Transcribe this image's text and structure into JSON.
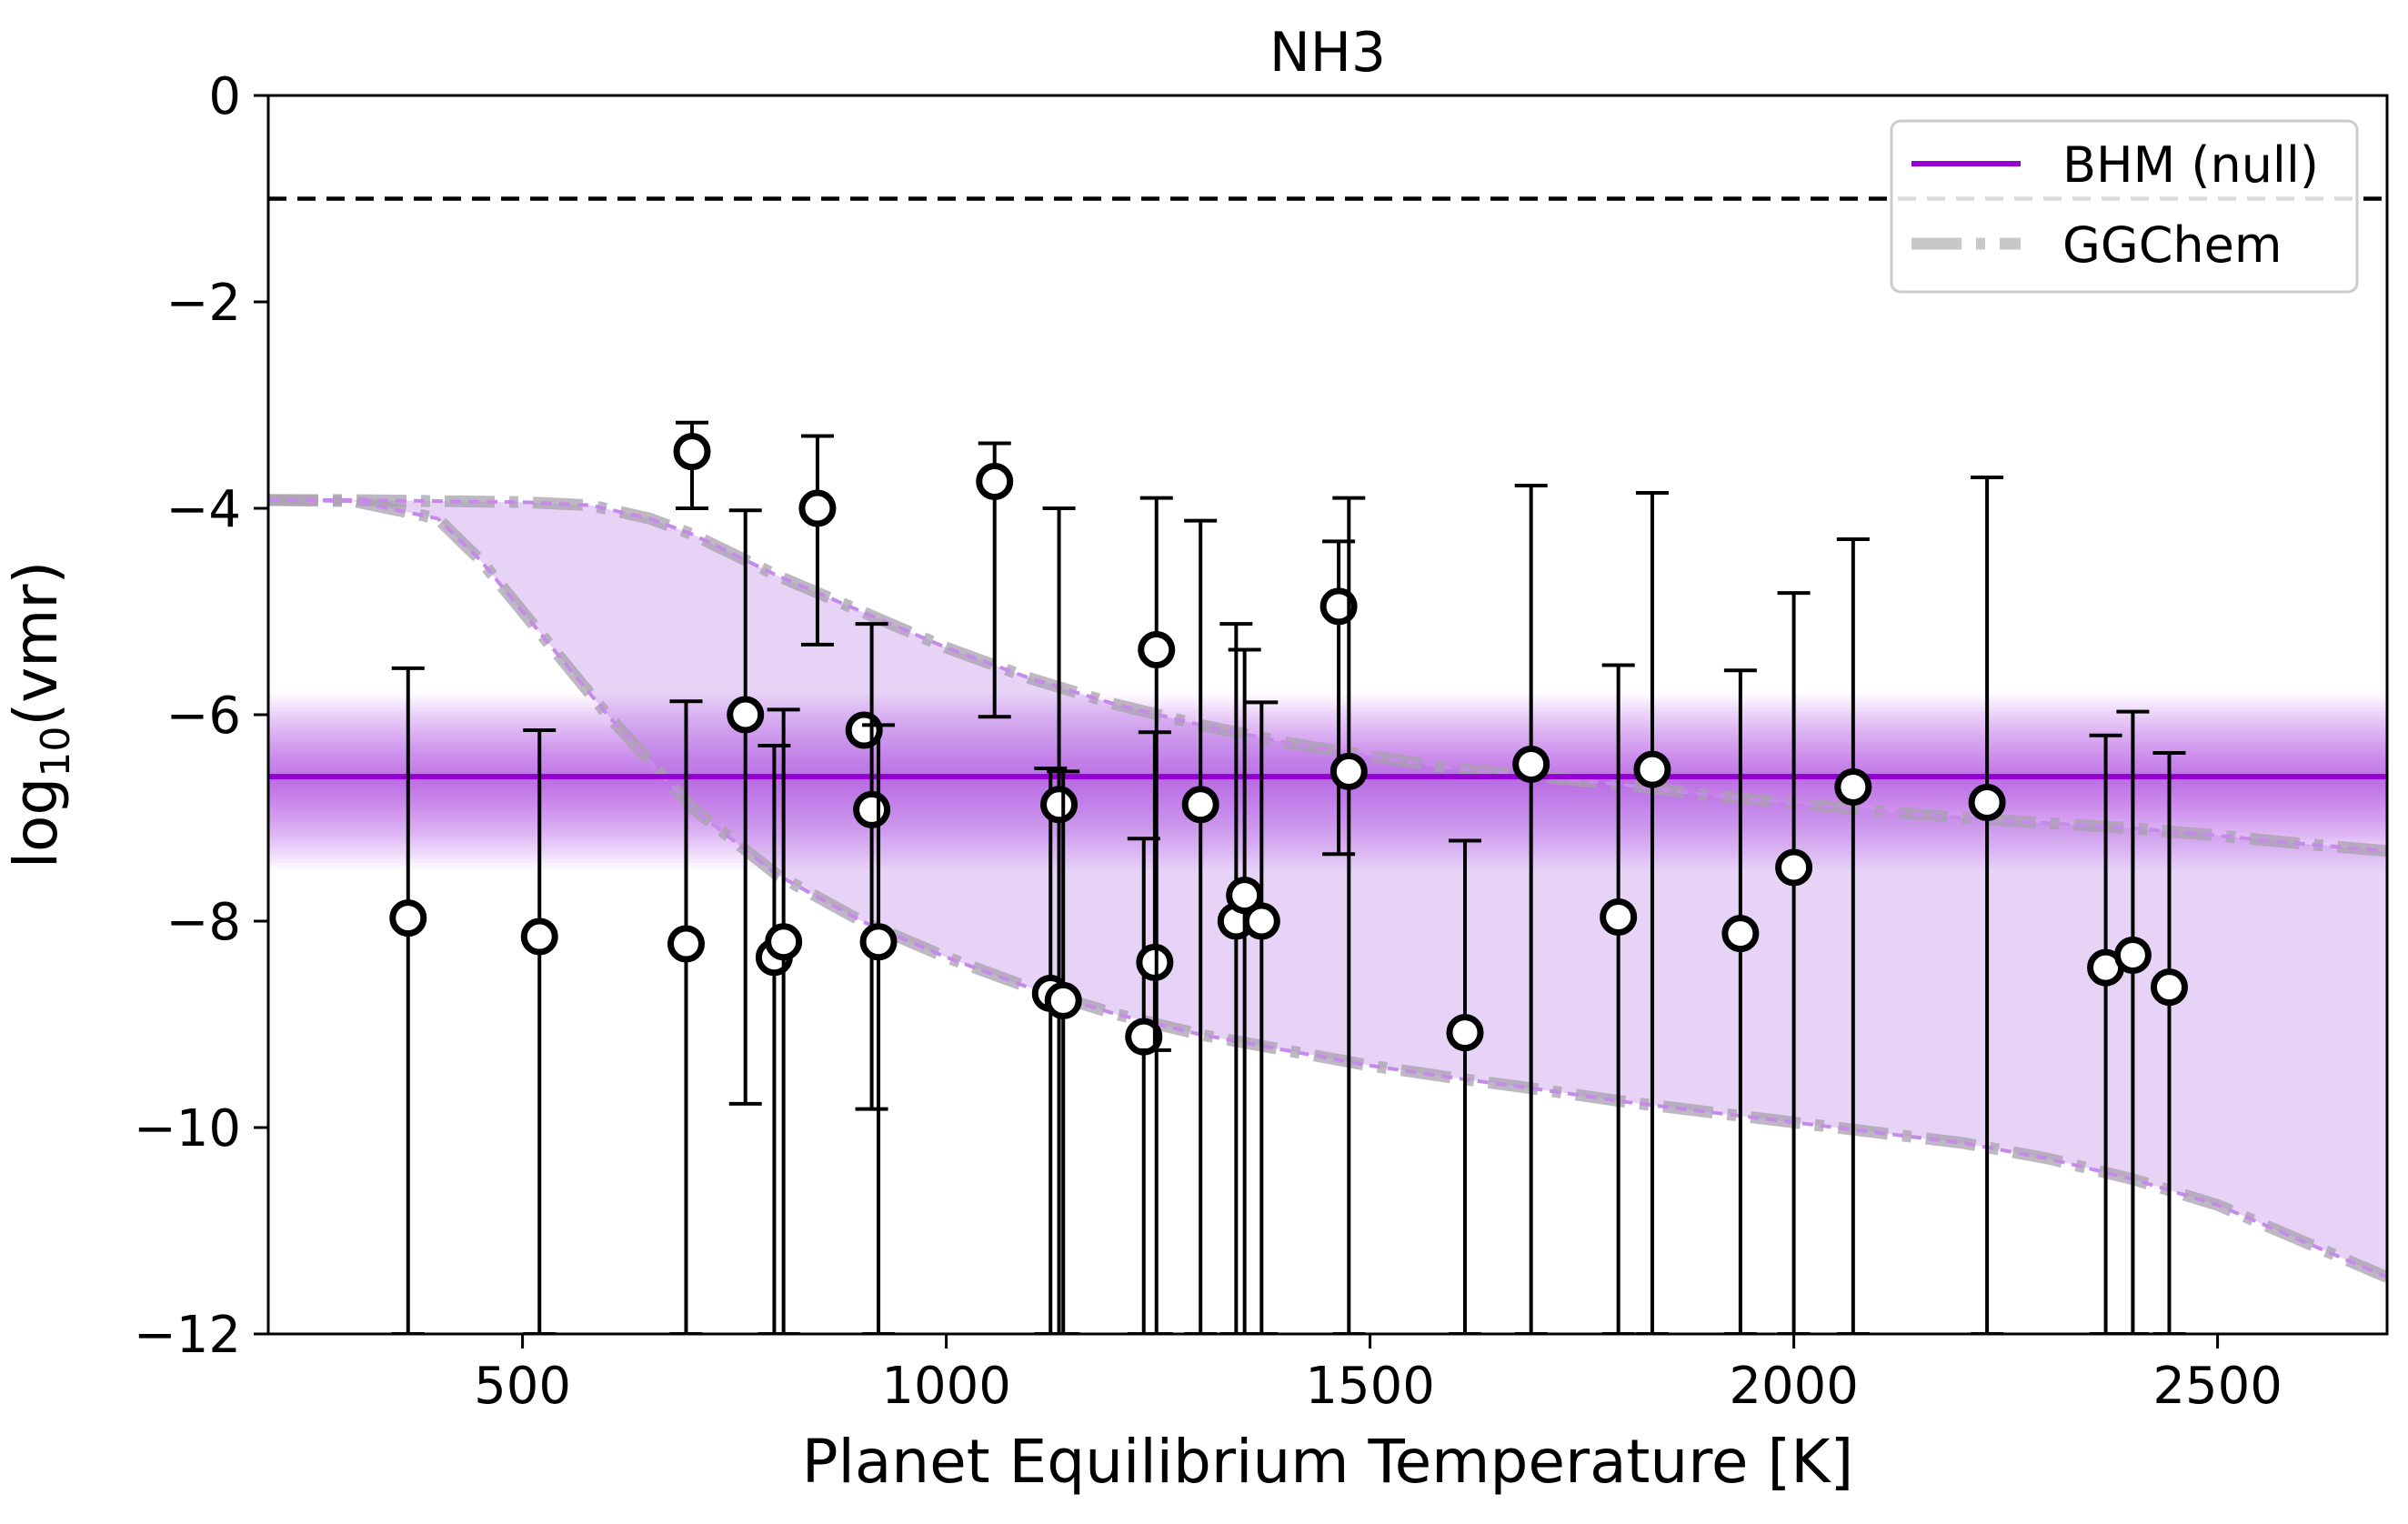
{
  "chart_data": {
    "type": "scatter",
    "title": "NH3",
    "xlabel": "Planet Equilibrium Temperature [K]",
    "ylabel_main": "log",
    "ylabel_sub": "10",
    "ylabel_rest": "(vmr)",
    "xlim": [
      200,
      2700
    ],
    "ylim": [
      -12,
      0
    ],
    "x_ticks": [
      500,
      1000,
      1500,
      2000,
      2500
    ],
    "x_tick_labels": [
      "500",
      "1000",
      "1500",
      "2000",
      "2500"
    ],
    "y_ticks": [
      0,
      -2,
      -4,
      -6,
      -8,
      -10,
      -12
    ],
    "y_tick_labels": [
      "0",
      "−2",
      "−4",
      "−6",
      "−8",
      "−10",
      "−12"
    ],
    "grid": false,
    "legend_position": "top-right",
    "legend": [
      {
        "label": "BHM (null)",
        "color": "#9400d3",
        "style": "solid"
      },
      {
        "label": "GGChem",
        "color": "#c8c8c8",
        "style": "dashdot"
      }
    ],
    "reference_line": {
      "y": -1.0,
      "style": "dashed",
      "color": "#000000"
    },
    "bhm_null": {
      "y": -6.6,
      "band": [
        -7.5,
        -5.8
      ],
      "color": "#9400d3"
    },
    "ggchem_upper": {
      "x": [
        200,
        300,
        400,
        500,
        580,
        650,
        700,
        800,
        900,
        1000,
        1100,
        1200,
        1300,
        1400,
        1500,
        1600,
        1700,
        1800,
        1900,
        2000,
        2100,
        2200,
        2300,
        2400,
        2500,
        2600,
        2700
      ],
      "y": [
        -3.92,
        -3.92,
        -3.93,
        -3.94,
        -3.97,
        -4.1,
        -4.25,
        -4.65,
        -5.0,
        -5.35,
        -5.65,
        -5.9,
        -6.1,
        -6.27,
        -6.4,
        -6.52,
        -6.6,
        -6.68,
        -6.78,
        -6.86,
        -6.93,
        -7.0,
        -7.05,
        -7.1,
        -7.17,
        -7.25,
        -7.32
      ]
    },
    "ggchem_lower": {
      "x": [
        200,
        300,
        400,
        450,
        500,
        550,
        600,
        700,
        800,
        900,
        1000,
        1100,
        1200,
        1300,
        1400,
        1500,
        1600,
        1700,
        1800,
        1900,
        2000,
        2100,
        2200,
        2300,
        2400,
        2500,
        2600,
        2700
      ],
      "y": [
        -3.92,
        -3.93,
        -4.1,
        -4.5,
        -5.0,
        -5.5,
        -6.0,
        -6.9,
        -7.55,
        -8.0,
        -8.35,
        -8.65,
        -8.9,
        -9.1,
        -9.25,
        -9.4,
        -9.52,
        -9.63,
        -9.75,
        -9.85,
        -9.95,
        -10.05,
        -10.15,
        -10.3,
        -10.5,
        -10.75,
        -11.1,
        -11.45
      ]
    },
    "series": [
      {
        "name": "Planets",
        "points": [
          {
            "x": 365,
            "y": -7.97,
            "lo": -12.0,
            "hi": -5.55
          },
          {
            "x": 520,
            "y": -8.15,
            "lo": -12.0,
            "hi": -6.15
          },
          {
            "x": 693,
            "y": -8.22,
            "lo": -12.0,
            "hi": -5.87
          },
          {
            "x": 700,
            "y": -3.45,
            "lo": -4.0,
            "hi": -3.17
          },
          {
            "x": 763,
            "y": -6.0,
            "lo": -9.77,
            "hi": -4.02
          },
          {
            "x": 797,
            "y": -8.35,
            "lo": -12.0,
            "hi": -6.3
          },
          {
            "x": 808,
            "y": -8.2,
            "lo": -12.0,
            "hi": -5.95
          },
          {
            "x": 848,
            "y": -4.0,
            "lo": -5.32,
            "hi": -3.3
          },
          {
            "x": 903,
            "y": -6.15,
            "lo": -6.15,
            "hi": -6.15
          },
          {
            "x": 912,
            "y": -6.92,
            "lo": -9.82,
            "hi": -5.12
          },
          {
            "x": 920,
            "y": -8.2,
            "lo": -12.0,
            "hi": -6.1
          },
          {
            "x": 1057,
            "y": -3.74,
            "lo": -6.02,
            "hi": -3.37
          },
          {
            "x": 1123,
            "y": -8.7,
            "lo": -12.0,
            "hi": -6.52
          },
          {
            "x": 1133,
            "y": -6.87,
            "lo": -12.0,
            "hi": -4.0
          },
          {
            "x": 1138,
            "y": -8.77,
            "lo": -12.0,
            "hi": -6.55
          },
          {
            "x": 1233,
            "y": -9.12,
            "lo": -12.0,
            "hi": -7.2
          },
          {
            "x": 1246,
            "y": -8.4,
            "lo": -9.25,
            "hi": -6.17
          },
          {
            "x": 1248,
            "y": -5.37,
            "lo": -12.0,
            "hi": -3.9
          },
          {
            "x": 1300,
            "y": -6.87,
            "lo": -12.0,
            "hi": -4.12
          },
          {
            "x": 1342,
            "y": -8.0,
            "lo": -12.0,
            "hi": -5.12
          },
          {
            "x": 1352,
            "y": -7.75,
            "lo": -12.0,
            "hi": -5.37
          },
          {
            "x": 1372,
            "y": -8.0,
            "lo": -12.0,
            "hi": -5.88
          },
          {
            "x": 1463,
            "y": -4.95,
            "lo": -7.35,
            "hi": -4.32
          },
          {
            "x": 1475,
            "y": -6.55,
            "lo": -12.0,
            "hi": -3.9
          },
          {
            "x": 1612,
            "y": -9.08,
            "lo": -12.0,
            "hi": -7.22
          },
          {
            "x": 1690,
            "y": -6.48,
            "lo": -12.0,
            "hi": -3.78
          },
          {
            "x": 1793,
            "y": -7.96,
            "lo": -12.0,
            "hi": -5.52
          },
          {
            "x": 1833,
            "y": -6.53,
            "lo": -12.0,
            "hi": -3.85
          },
          {
            "x": 1937,
            "y": -8.12,
            "lo": -12.0,
            "hi": -5.57
          },
          {
            "x": 2000,
            "y": -7.48,
            "lo": -12.0,
            "hi": -4.82
          },
          {
            "x": 2070,
            "y": -6.7,
            "lo": -12.0,
            "hi": -4.3
          },
          {
            "x": 2228,
            "y": -6.85,
            "lo": -12.0,
            "hi": -3.7
          },
          {
            "x": 2368,
            "y": -8.45,
            "lo": -12.0,
            "hi": -6.2
          },
          {
            "x": 2400,
            "y": -8.33,
            "lo": -12.0,
            "hi": -5.97
          },
          {
            "x": 2443,
            "y": -8.64,
            "lo": -12.0,
            "hi": -6.37
          }
        ]
      }
    ]
  }
}
